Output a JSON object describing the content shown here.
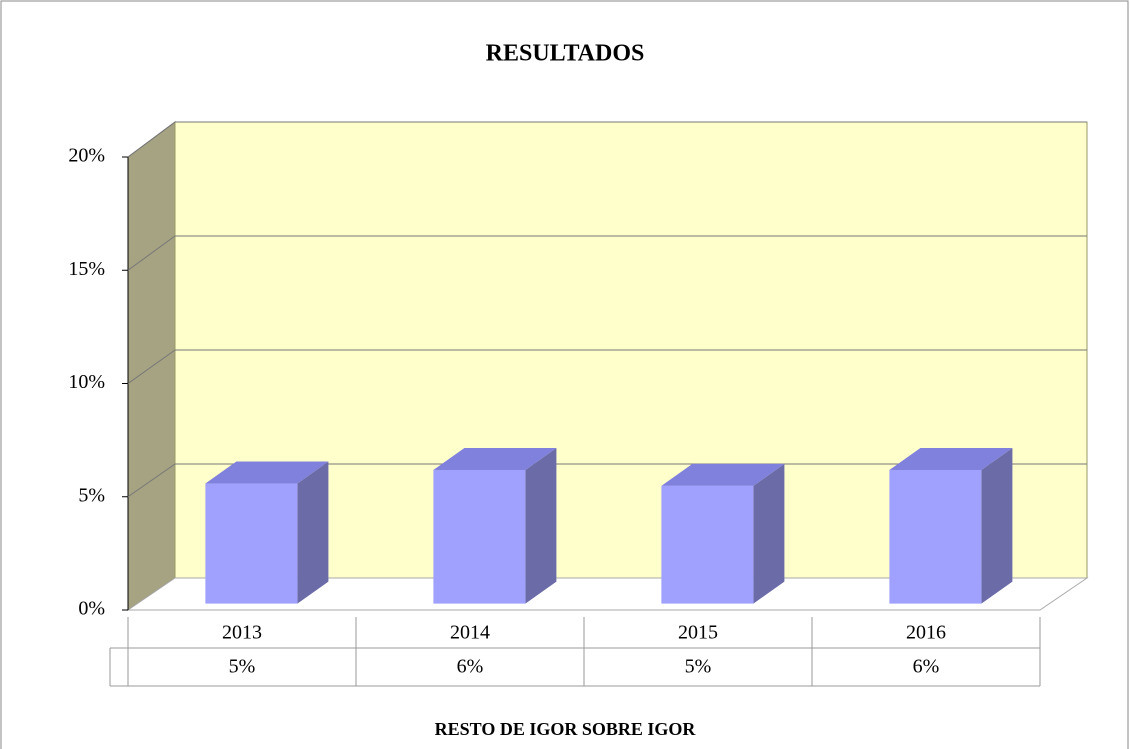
{
  "chart_data": {
    "type": "bar3d",
    "title": "RESULTADOS",
    "x_label": "RESTO DE IGOR SOBRE IGOR",
    "categories": [
      "2013",
      "2014",
      "2015",
      "2016"
    ],
    "values": [
      5.3,
      5.9,
      5.2,
      5.9
    ],
    "value_labels": [
      "5%",
      "6%",
      "5%",
      "6%"
    ],
    "color": "#a0a0ff",
    "ylim": [
      0,
      20
    ],
    "yticks": [
      {
        "value": 0,
        "label": "0%"
      },
      {
        "value": 5,
        "label": "5%"
      },
      {
        "value": 10,
        "label": "10%"
      },
      {
        "value": 15,
        "label": "15%"
      },
      {
        "value": 20,
        "label": "20%"
      }
    ],
    "grid": true
  }
}
